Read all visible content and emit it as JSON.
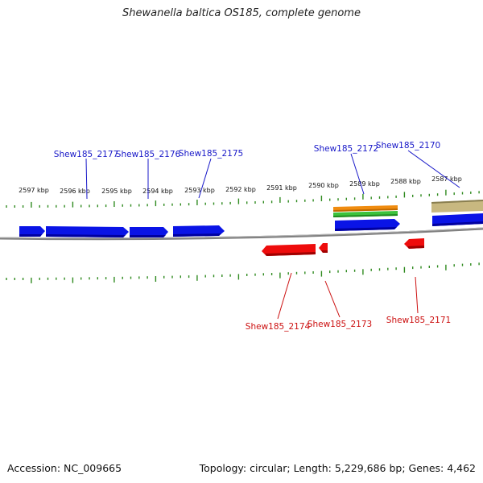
{
  "title": "Shewanella baltica OS185, complete genome",
  "footer": {
    "accession": "Accession: NC_009665",
    "topology": "Topology: circular; Length: 5,229,686 bp; Genes: 4,462"
  },
  "colors": {
    "forward_gene": "#0a14e6",
    "reverse_gene": "#ee0c0c",
    "tick": "#2f8a1f",
    "backbone": "#808080",
    "forward_label": "#1818c8",
    "reverse_label": "#cc1010",
    "feature_orange": "#f08c10",
    "feature_green": "#3cc23c",
    "feature_tan": "#c8b880"
  },
  "scale_labels": [
    "2597 kbp",
    "2596 kbp",
    "2595 kbp",
    "2594 kbp",
    "2593 kbp",
    "2592 kbp",
    "2591 kbp",
    "2590 kbp",
    "2589 kbp",
    "2588 kbp",
    "2587 kbp"
  ],
  "forward_gene_labels": [
    "Shew185_2177",
    "Shew185_2176",
    "Shew185_2175",
    "Shew185_2172",
    "Shew185_2170"
  ],
  "reverse_gene_labels": [
    "Shew185_2174",
    "Shew185_2173",
    "Shew185_2171"
  ]
}
